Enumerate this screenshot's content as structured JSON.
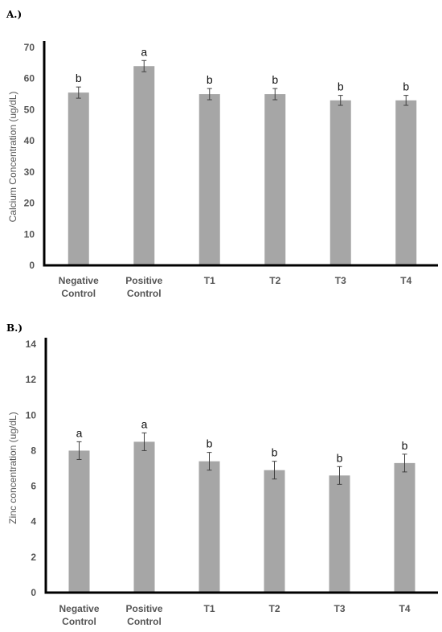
{
  "chart_data": [
    {
      "type": "bar",
      "panel_label": "A.)",
      "categories": [
        "Negative Control",
        "Positive Control",
        "T1",
        "T2",
        "T3",
        "T4"
      ],
      "category_lines": [
        [
          "Negative",
          "Control"
        ],
        [
          "Positive",
          "Control"
        ],
        [
          "T1"
        ],
        [
          "T2"
        ],
        [
          "T3"
        ],
        [
          "T4"
        ]
      ],
      "values": [
        55.5,
        64,
        55,
        55,
        53,
        53
      ],
      "errors": [
        1.8,
        1.8,
        1.8,
        1.8,
        1.6,
        1.6
      ],
      "labels": [
        "b",
        "a",
        "b",
        "b",
        "b",
        "b"
      ],
      "ylabel": "Calcium Concentration (ug/dL)",
      "ylim": [
        0,
        70
      ],
      "yticks": [
        0,
        10,
        20,
        30,
        40,
        50,
        60,
        70
      ],
      "grid": false,
      "colors": {
        "bar": "#a6a6a6",
        "axis": "#000000"
      }
    },
    {
      "type": "bar",
      "panel_label": "B.)",
      "categories": [
        "Negative Control",
        "Positive Control",
        "T1",
        "T2",
        "T3",
        "T4"
      ],
      "category_lines": [
        [
          "Negative",
          "Control"
        ],
        [
          "Positive",
          "Control"
        ],
        [
          "T1"
        ],
        [
          "T2"
        ],
        [
          "T3"
        ],
        [
          "T4"
        ]
      ],
      "values": [
        8.0,
        8.5,
        7.4,
        6.9,
        6.6,
        7.3
      ],
      "errors": [
        0.5,
        0.5,
        0.5,
        0.5,
        0.5,
        0.5
      ],
      "labels": [
        "a",
        "a",
        "b",
        "b",
        "b",
        "b"
      ],
      "ylabel": "Zinc concentration (ug/dL)",
      "ylim": [
        0,
        14
      ],
      "yticks": [
        0,
        2,
        4,
        6,
        8,
        10,
        12,
        14
      ],
      "grid": false,
      "colors": {
        "bar": "#a6a6a6",
        "axis": "#000000"
      }
    }
  ]
}
